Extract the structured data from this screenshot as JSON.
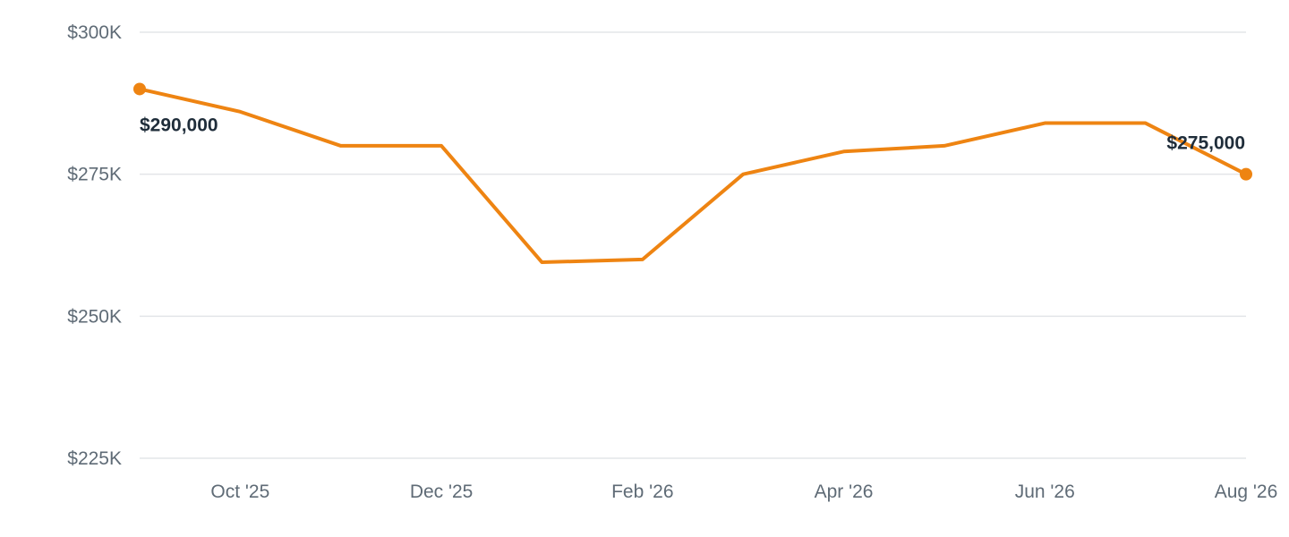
{
  "chart_data": {
    "type": "line",
    "title": "",
    "xlabel": "",
    "ylabel": "",
    "x": [
      "2025-09",
      "2025-10",
      "2025-11",
      "2025-12",
      "2026-01",
      "2026-02",
      "2026-03",
      "2026-04",
      "2026-05",
      "2026-06",
      "2026-07",
      "2026-08"
    ],
    "series": [
      {
        "values": [
          290000,
          286000,
          280000,
          280000,
          259500,
          260000,
          275000,
          279000,
          280000,
          284000,
          284000,
          275000
        ],
        "color": "#ee8412"
      }
    ],
    "ylim": [
      225000,
      300000
    ],
    "y_ticks": [
      {
        "value": 300000,
        "label": "$300K"
      },
      {
        "value": 275000,
        "label": "$275K"
      },
      {
        "value": 250000,
        "label": "$250K"
      },
      {
        "value": 225000,
        "label": "$225K"
      }
    ],
    "x_ticks": [
      {
        "index": 1,
        "label": "Oct '25"
      },
      {
        "index": 3,
        "label": "Dec '25"
      },
      {
        "index": 5,
        "label": "Feb '26"
      },
      {
        "index": 7,
        "label": "Apr '26"
      },
      {
        "index": 9,
        "label": "Jun '26"
      },
      {
        "index": 11,
        "label": "Aug '26"
      }
    ],
    "annotations": [
      {
        "index": 0,
        "text": "$290,000"
      },
      {
        "index": 11,
        "text": "$275,000"
      }
    ],
    "grid": true,
    "legend": "none"
  }
}
